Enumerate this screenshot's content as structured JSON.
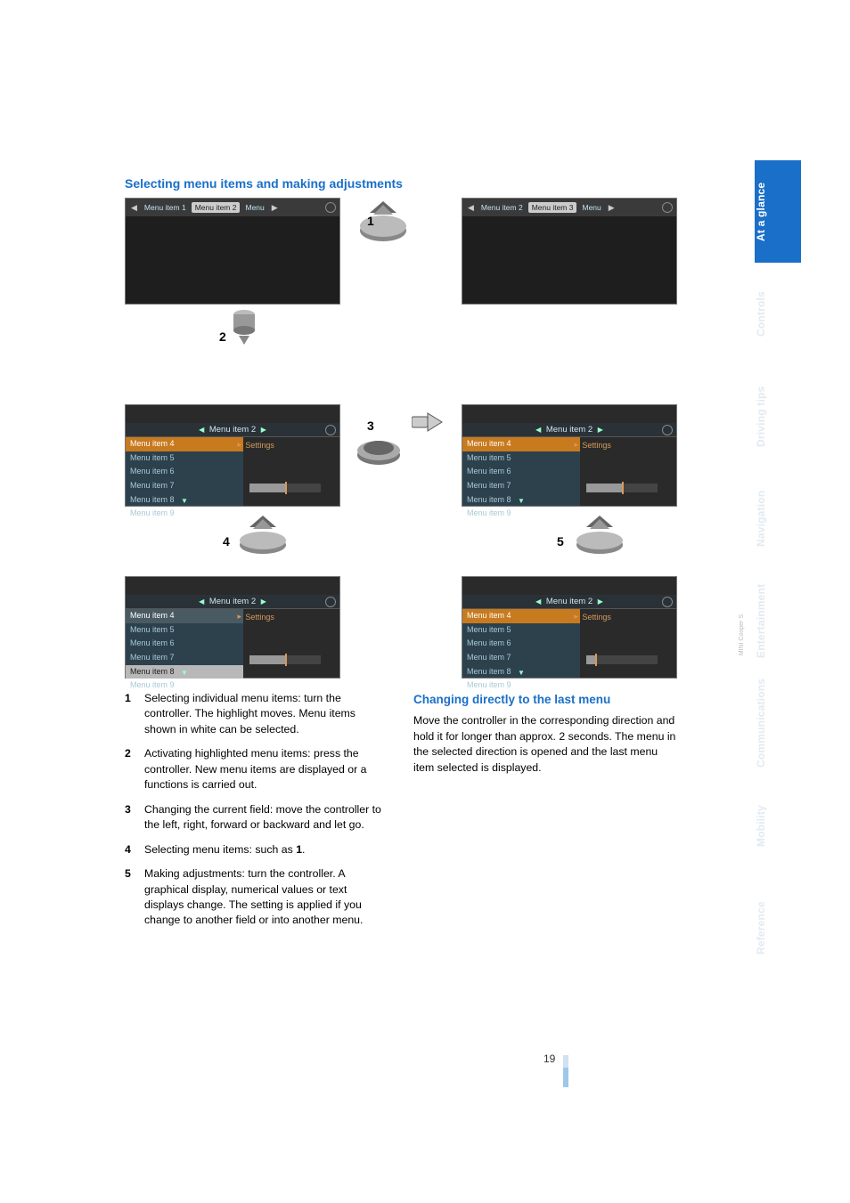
{
  "heading": "Selecting menu items and making adjustments",
  "subheading": "Changing directly to the last menu",
  "page_number": "19",
  "sidetabs": [
    {
      "label": "At a glance",
      "active": true
    },
    {
      "label": "Controls",
      "active": false
    },
    {
      "label": "Driving tips",
      "active": false
    },
    {
      "label": "Navigation",
      "active": false
    },
    {
      "label": "Entertainment",
      "active": false
    },
    {
      "label": "Communications",
      "active": false
    },
    {
      "label": "Mobility",
      "active": false
    },
    {
      "label": "Reference",
      "active": false
    }
  ],
  "colors": {
    "accent": "#1a6fc9",
    "ghost": "#e1eaf2",
    "orange": "#c77a1e",
    "panel": "#2d414d"
  },
  "figure": {
    "shot_top_left": {
      "tabs": [
        "Menu item 1",
        "Menu item 2",
        "Menu"
      ],
      "selected_tab_index": 1
    },
    "shot_top_right": {
      "tabs": [
        "Menu item 2",
        "Menu item 3",
        "Menu"
      ],
      "selected_tab_index": 1
    },
    "menu_title": "Menu item 2",
    "settings_label": "Settings",
    "rows": [
      "Menu item 4",
      "Menu item 5",
      "Menu item 6",
      "Menu item 7",
      "Menu item 8",
      "Menu item 9"
    ],
    "panel_mid_left": {
      "highlight_row": 0,
      "highlight_style": "orange",
      "slider_fill": 0.5,
      "slider_pos": 0.5
    },
    "panel_mid_right": {
      "highlight_row": 0,
      "highlight_style": "orange",
      "slider_fill": 0.5,
      "slider_pos": 0.5
    },
    "panel_bot_left": {
      "highlight_row": 4,
      "highlight_style": "light",
      "slider_fill": 0.5,
      "slider_pos": 0.5,
      "first_row_style": "dark"
    },
    "panel_bot_right": {
      "highlight_row": 0,
      "highlight_style": "orange",
      "slider_fill": 0.12,
      "slider_pos": 0.12
    },
    "labels": {
      "n1": "1",
      "n2": "2",
      "n3": "3",
      "n4": "4",
      "n5": "5"
    }
  },
  "list": [
    {
      "n": "1",
      "text_parts": [
        "Selecting individual menu items: turn the controller. The highlight moves. Menu items shown in white can be selected."
      ]
    },
    {
      "n": "2",
      "text_parts": [
        "Activating highlighted menu items: press the controller. New menu items are displayed or a functions is carried out."
      ]
    },
    {
      "n": "3",
      "text_parts": [
        "Changing the current field: move the controller to the left, right, forward or backward and let go."
      ]
    },
    {
      "n": "4",
      "text_parts": [
        "Selecting menu items: such as ",
        {
          "bold": "1"
        },
        "."
      ]
    },
    {
      "n": "5",
      "text_parts": [
        "Making adjustments: turn the controller. A graphical display, numerical values or text displays change. The setting is applied if you change to another field or into another menu."
      ]
    }
  ],
  "right_para": "Move the controller in the corresponding direction and hold it for longer than approx. 2 seconds. The menu in the selected direction is opened and the last menu item selected is displayed."
}
